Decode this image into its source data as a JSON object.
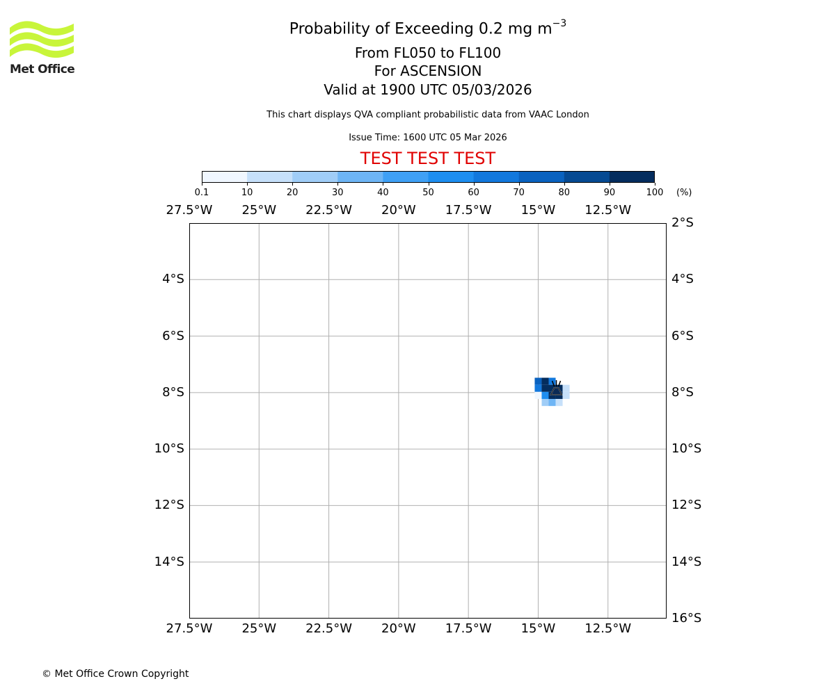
{
  "logo": {
    "text": "Met Office",
    "color": "#c8f53a"
  },
  "title": {
    "main_prefix": "Probability of Exceeding 0.2 mg m",
    "main_exponent": "−3",
    "levels": "From FL050 to FL100",
    "volcano": "For ASCENSION",
    "valid": "Valid at 1900 UTC 05/03/2026"
  },
  "disclaimer": "This chart displays QVA compliant probabilistic data from VAAC London",
  "issue_time": "Issue Time: 1600 UTC 05 Mar 2026",
  "test_banner": "TEST TEST TEST",
  "colorbar": {
    "ticks": [
      "0.1",
      "10",
      "20",
      "30",
      "40",
      "50",
      "60",
      "70",
      "80",
      "90",
      "100"
    ],
    "unit": "(%)",
    "colors": [
      "#f0f7ff",
      "#c6e0fa",
      "#a0cdf7",
      "#6eb5f5",
      "#3fa0f5",
      "#1e8ef0",
      "#1278dd",
      "#0a62bf",
      "#064a92",
      "#042d5e"
    ]
  },
  "chart_data": {
    "type": "heatmap",
    "projection": "PlateCarree",
    "lon_range": [
      -27.5,
      -10.4
    ],
    "lat_range": [
      -16.0,
      -2.0
    ],
    "lon_ticks": [
      "27.5°W",
      "25°W",
      "22.5°W",
      "20°W",
      "17.5°W",
      "15°W",
      "12.5°W"
    ],
    "lat_ticks": [
      "2°S",
      "4°S",
      "6°S",
      "8°S",
      "10°S",
      "12°S",
      "14°S",
      "16°S"
    ],
    "grid": true,
    "volcano": {
      "name": "ASCENSION",
      "lon": -14.35,
      "lat": -7.93
    },
    "cells": [
      {
        "lon": -15.0,
        "lat": -7.6,
        "prob": 75
      },
      {
        "lon": -14.75,
        "lat": -7.6,
        "prob": 95
      },
      {
        "lon": -14.5,
        "lat": -7.6,
        "prob": 65
      },
      {
        "lon": -15.0,
        "lat": -7.85,
        "prob": 65
      },
      {
        "lon": -14.75,
        "lat": -7.85,
        "prob": 95
      },
      {
        "lon": -14.5,
        "lat": -7.85,
        "prob": 95
      },
      {
        "lon": -14.25,
        "lat": -7.85,
        "prob": 95
      },
      {
        "lon": -14.0,
        "lat": -7.85,
        "prob": 15
      },
      {
        "lon": -15.0,
        "lat": -8.1,
        "prob": 5
      },
      {
        "lon": -14.75,
        "lat": -8.1,
        "prob": 55
      },
      {
        "lon": -14.5,
        "lat": -8.1,
        "prob": 95
      },
      {
        "lon": -14.25,
        "lat": -8.1,
        "prob": 95
      },
      {
        "lon": -14.0,
        "lat": -8.1,
        "prob": 15
      },
      {
        "lon": -14.75,
        "lat": -8.35,
        "prob": 25
      },
      {
        "lon": -14.5,
        "lat": -8.35,
        "prob": 35
      },
      {
        "lon": -14.25,
        "lat": -8.35,
        "prob": 15
      }
    ]
  },
  "copyright": "© Met Office Crown Copyright"
}
